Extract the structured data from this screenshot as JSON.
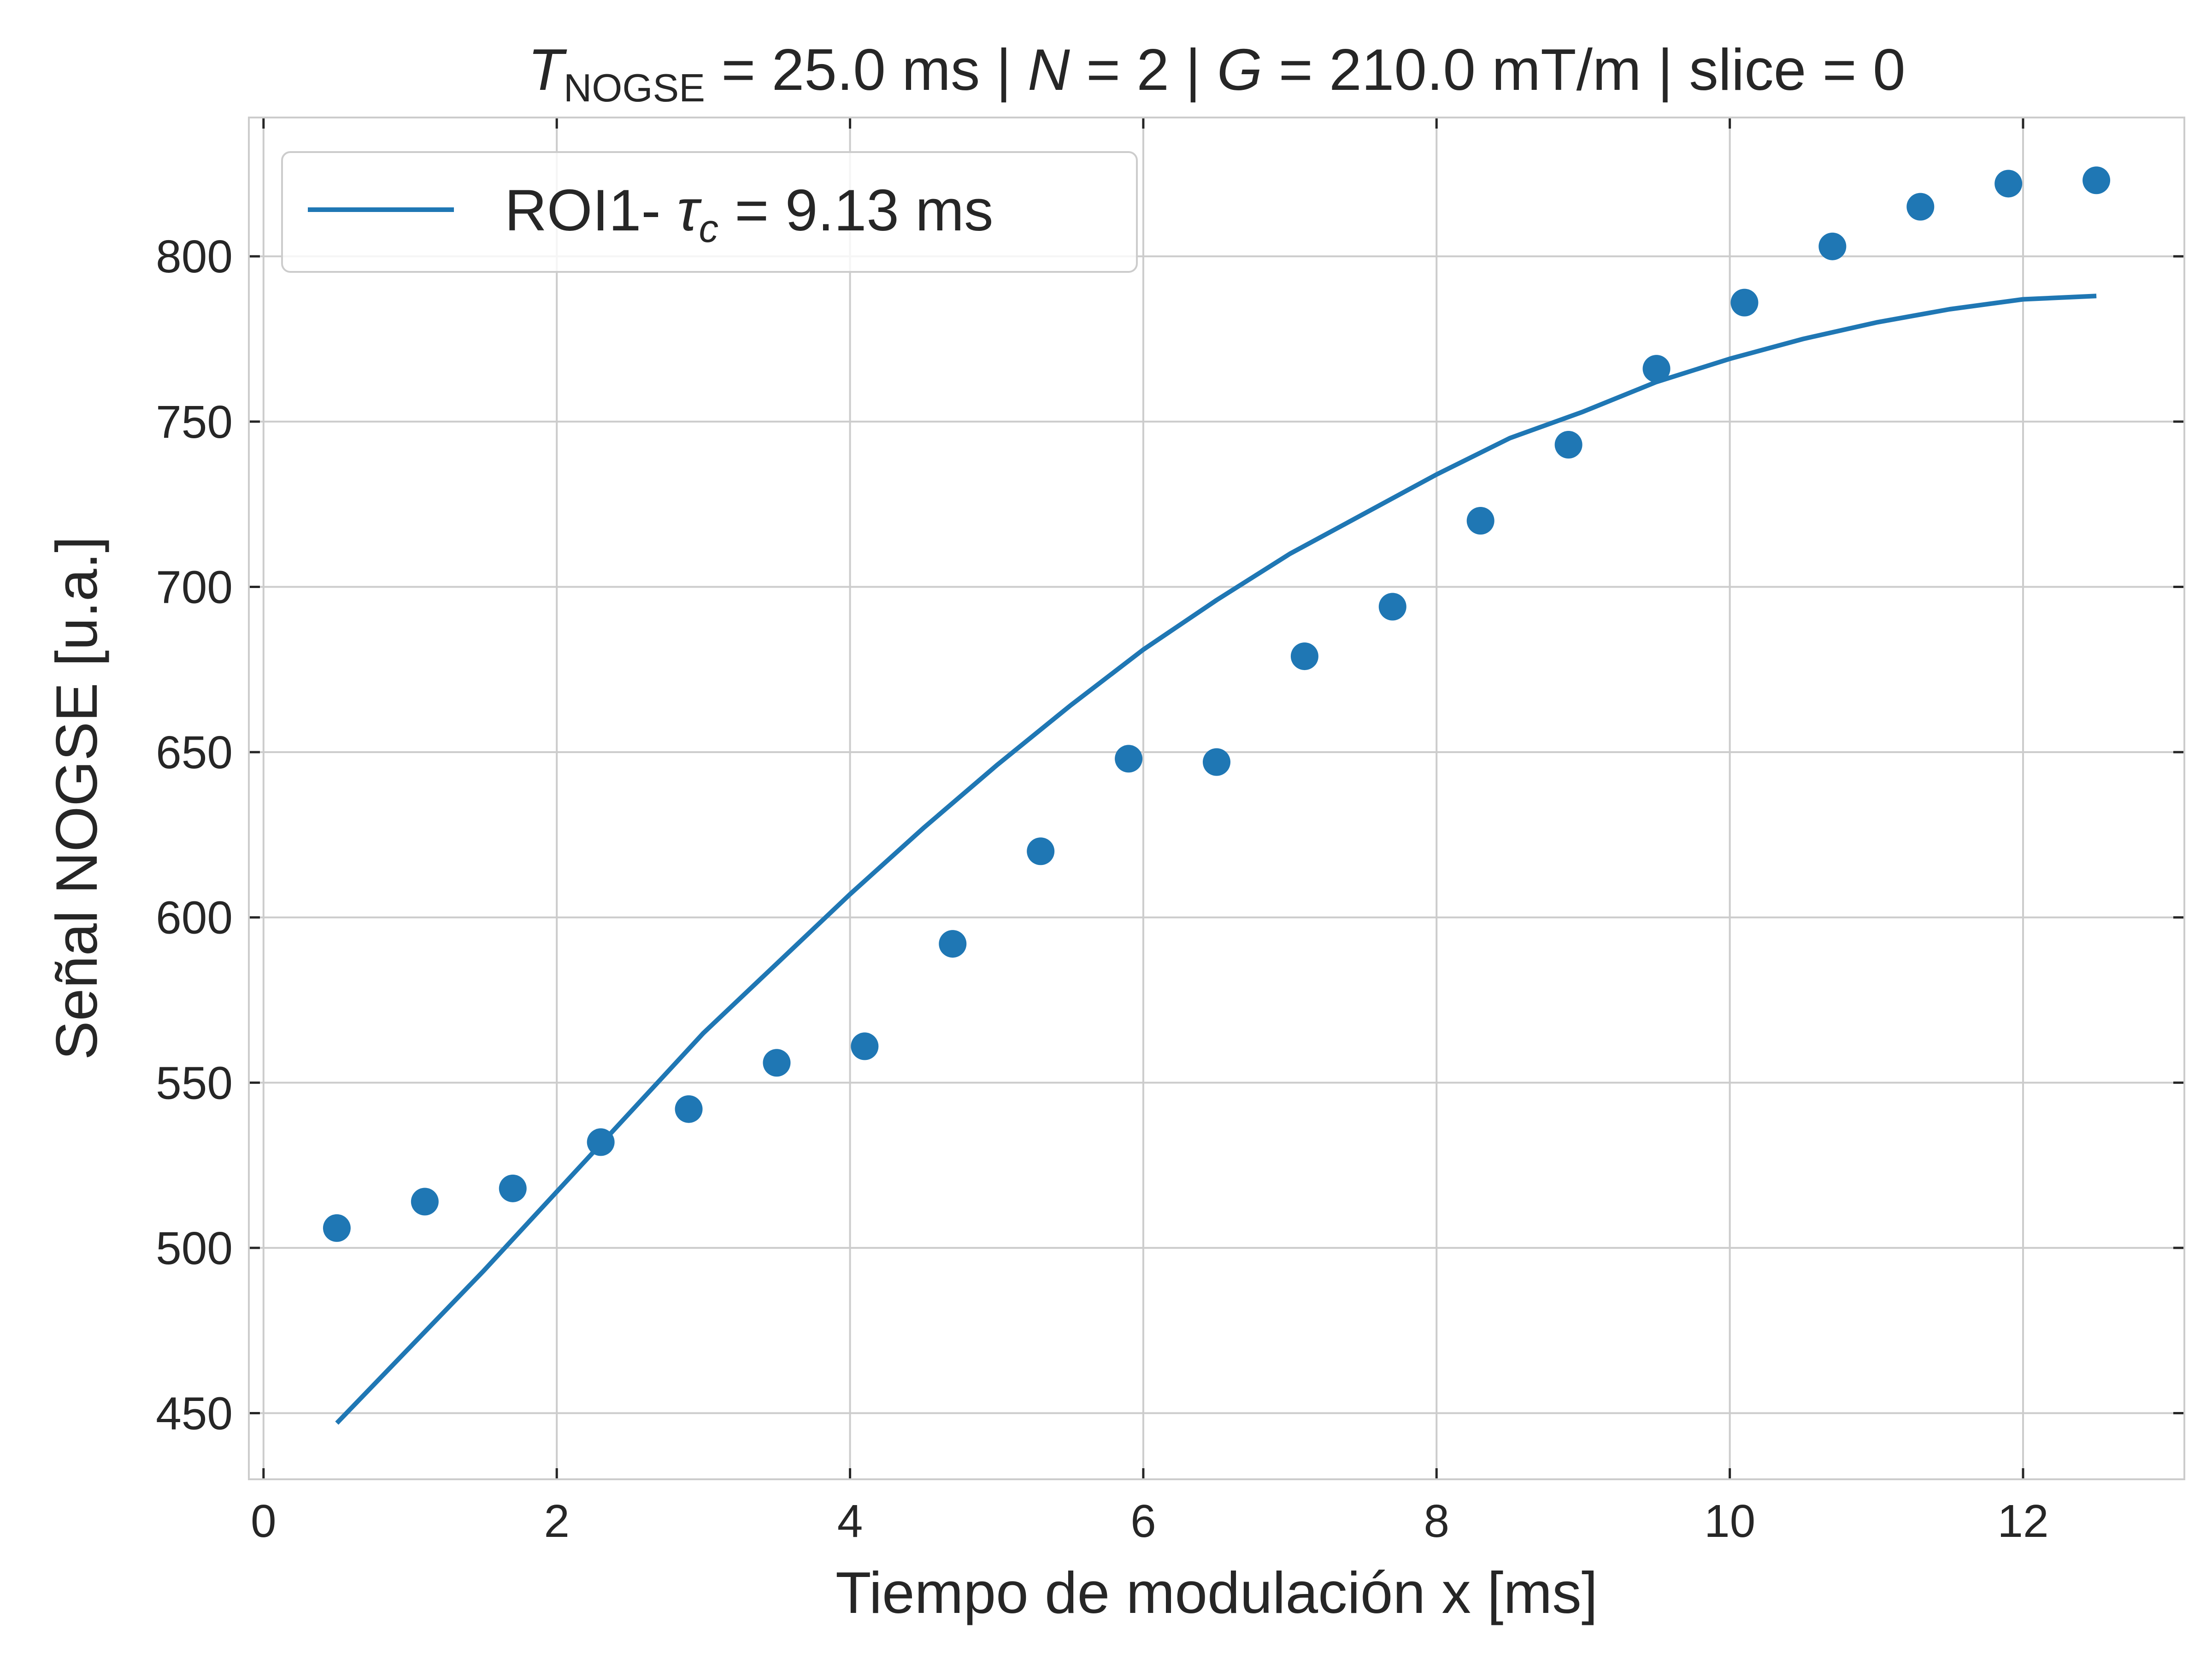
{
  "chart_data": {
    "type": "scatter",
    "title": {
      "symbol": "T",
      "subscript": "NOGSE",
      "eq1": " = 25.0 ms | ",
      "sym2": "N",
      "eq2": " = 2 | ",
      "sym3": "G",
      "eq3": " = 210.0 mT/m | slice = 0"
    },
    "xlabel": "Tiempo de modulación x [ms]",
    "ylabel": "Señal NOGSE [u.a.]",
    "xlim": [
      -0.1,
      13.1
    ],
    "ylim": [
      430,
      842
    ],
    "xticks": [
      "0",
      "2",
      "4",
      "6",
      "8",
      "10",
      "12"
    ],
    "yticks": [
      "450",
      "500",
      "550",
      "600",
      "650",
      "700",
      "750",
      "800"
    ],
    "grid": true,
    "legend": {
      "placement": "upper-left",
      "prefix": "ROI1- ",
      "symbol": "τ",
      "subscript": "c",
      "suffix": " = 9.13 ms"
    },
    "series": [
      {
        "kind": "points",
        "color": "#1f77b4",
        "x": [
          0.5,
          1.1,
          1.7,
          2.3,
          2.9,
          3.5,
          4.1,
          4.7,
          5.3,
          5.9,
          6.5,
          7.1,
          7.7,
          8.3,
          8.9,
          9.5,
          10.1,
          10.7,
          11.3,
          11.9,
          12.5
        ],
        "y": [
          506,
          514,
          518,
          532,
          542,
          556,
          561,
          592,
          620,
          648,
          647,
          679,
          694,
          720,
          743,
          766,
          786,
          803,
          815,
          822,
          823
        ]
      },
      {
        "kind": "fit-line",
        "color": "#1f77b4",
        "x": [
          0.5,
          1.0,
          1.5,
          2.0,
          2.5,
          3.0,
          3.5,
          4.0,
          4.5,
          5.0,
          5.5,
          6.0,
          6.5,
          7.0,
          7.5,
          8.0,
          8.5,
          9.0,
          9.5,
          10.0,
          10.5,
          11.0,
          11.5,
          12.0,
          12.5
        ],
        "y": [
          447,
          470,
          493,
          517,
          541,
          565,
          586,
          607,
          627,
          646,
          664,
          681,
          696,
          710,
          722,
          734,
          745,
          753,
          762,
          769,
          775,
          780,
          784,
          787,
          788
        ]
      }
    ]
  }
}
